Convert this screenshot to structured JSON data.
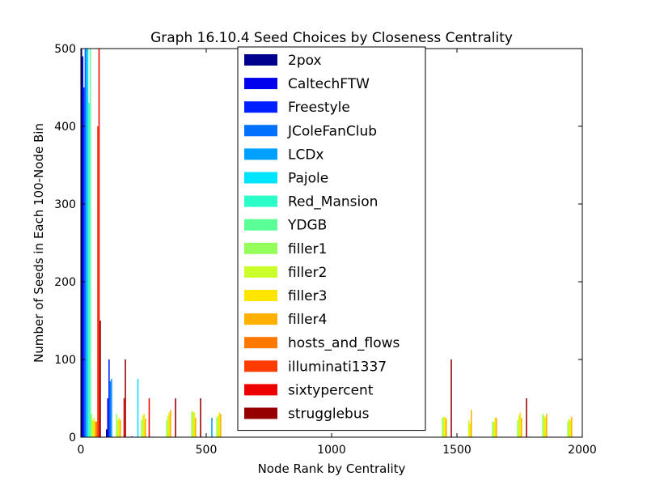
{
  "chart_data": {
    "type": "bar",
    "title": "Graph 16.10.4 Seed Choices by Closeness Centrality",
    "xlabel": "Node Rank by Centrality",
    "ylabel": "Number of Seeds in Each 100-Node Bin",
    "xlim": [
      0,
      2000
    ],
    "ylim": [
      0,
      500
    ],
    "xticks": [
      "0",
      "500",
      "1000",
      "1500",
      "2000"
    ],
    "yticks": [
      "0",
      "100",
      "200",
      "300",
      "400",
      "500"
    ],
    "legend_position": "top-center",
    "grid": false,
    "bins": [
      0,
      100,
      200,
      300,
      400,
      500,
      600,
      700,
      800,
      900,
      1000,
      1100,
      1200,
      1300,
      1400,
      1500,
      1600,
      1700,
      1800,
      1900
    ],
    "series": [
      {
        "name": "2pox",
        "color": "#00008f",
        "values": [
          500,
          10,
          1,
          0,
          0,
          0,
          0,
          0,
          0,
          0,
          0,
          0,
          0,
          0,
          0,
          0,
          0,
          0,
          0,
          0
        ]
      },
      {
        "name": "CaltechFTW",
        "color": "#0000ef",
        "values": [
          490,
          50,
          0,
          0,
          0,
          0,
          0,
          0,
          0,
          0,
          0,
          0,
          0,
          0,
          0,
          0,
          0,
          0,
          0,
          0
        ]
      },
      {
        "name": "Freestyle",
        "color": "#0020ff",
        "values": [
          450,
          100,
          0,
          0,
          0,
          0,
          0,
          0,
          0,
          0,
          0,
          0,
          0,
          0,
          0,
          0,
          0,
          0,
          0,
          0
        ]
      },
      {
        "name": "JColeFanClub",
        "color": "#0070ff",
        "values": [
          500,
          72,
          0,
          0,
          0,
          0,
          0,
          0,
          0,
          0,
          0,
          0,
          0,
          0,
          0,
          0,
          0,
          0,
          0,
          0
        ]
      },
      {
        "name": "LCDx",
        "color": "#00a0ff",
        "values": [
          500,
          75,
          0,
          0,
          0,
          25,
          0,
          0,
          0,
          0,
          0,
          0,
          0,
          0,
          0,
          0,
          0,
          0,
          0,
          0
        ]
      },
      {
        "name": "Pajole",
        "color": "#00e5ff",
        "values": [
          500,
          0,
          75,
          0,
          0,
          0,
          0,
          0,
          0,
          0,
          0,
          0,
          0,
          0,
          0,
          0,
          0,
          0,
          0,
          0
        ]
      },
      {
        "name": "Red_Mansion",
        "color": "#2affc8",
        "values": [
          430,
          0,
          0,
          0,
          0,
          0,
          0,
          0,
          0,
          0,
          0,
          0,
          0,
          0,
          0,
          0,
          0,
          0,
          0,
          0
        ]
      },
      {
        "name": "YDGB",
        "color": "#5aff96",
        "values": [
          500,
          0,
          0,
          0,
          0,
          0,
          0,
          0,
          0,
          0,
          0,
          0,
          0,
          0,
          0,
          0,
          0,
          0,
          0,
          0
        ]
      },
      {
        "name": "filler1",
        "color": "#94ff5a",
        "values": [
          30,
          30,
          22,
          22,
          33,
          25,
          0,
          0,
          0,
          0,
          0,
          0,
          0,
          0,
          25,
          0,
          20,
          22,
          30,
          20
        ]
      },
      {
        "name": "filler2",
        "color": "#caff2a",
        "values": [
          22,
          22,
          28,
          28,
          33,
          28,
          0,
          0,
          0,
          0,
          0,
          0,
          0,
          0,
          26,
          22,
          20,
          28,
          28,
          24
        ]
      },
      {
        "name": "filler3",
        "color": "#ffe600",
        "values": [
          25,
          25,
          30,
          32,
          32,
          32,
          0,
          0,
          0,
          0,
          0,
          0,
          0,
          0,
          26,
          18,
          25,
          32,
          26,
          22
        ]
      },
      {
        "name": "filler4",
        "color": "#ffb000",
        "values": [
          20,
          22,
          24,
          35,
          25,
          30,
          0,
          0,
          0,
          0,
          0,
          0,
          0,
          0,
          24,
          35,
          25,
          25,
          30,
          26
        ]
      },
      {
        "name": "hosts_and_flows",
        "color": "#ff7800",
        "values": [
          20,
          0,
          0,
          0,
          0,
          0,
          0,
          0,
          0,
          0,
          0,
          0,
          0,
          0,
          0,
          0,
          0,
          0,
          0,
          0
        ]
      },
      {
        "name": "illuminati1337",
        "color": "#ff3c00",
        "values": [
          400,
          0,
          0,
          0,
          0,
          0,
          0,
          0,
          0,
          0,
          0,
          0,
          0,
          0,
          0,
          0,
          0,
          0,
          0,
          0
        ]
      },
      {
        "name": "sixtypercent",
        "color": "#ef0000",
        "values": [
          500,
          50,
          50,
          0,
          0,
          0,
          0,
          0,
          0,
          0,
          0,
          0,
          0,
          0,
          0,
          0,
          0,
          0,
          0,
          0
        ]
      },
      {
        "name": "strugglebus",
        "color": "#960000",
        "values": [
          150,
          100,
          0,
          50,
          50,
          0,
          0,
          0,
          0,
          0,
          0,
          0,
          0,
          0,
          100,
          0,
          0,
          50,
          0,
          0
        ]
      }
    ]
  }
}
